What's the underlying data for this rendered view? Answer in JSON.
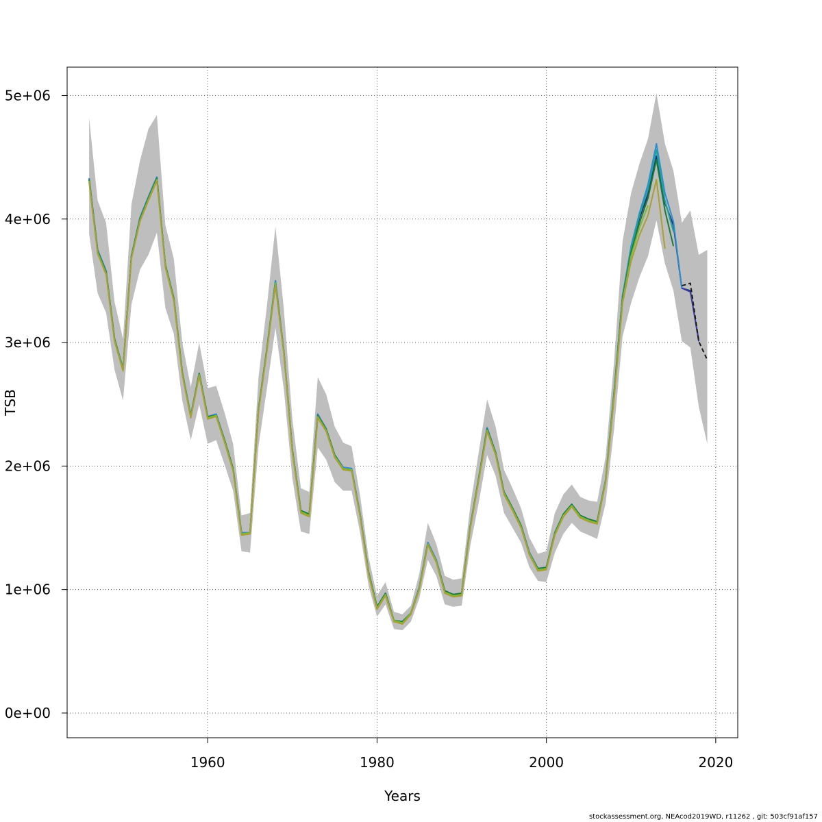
{
  "chart_data": {
    "type": "line",
    "xlabel": "Years",
    "ylabel": "TSB",
    "xlim": [
      1943.4,
      2022.6
    ],
    "ylim": [
      -200000,
      5230000
    ],
    "x_ticks": [
      1960,
      1980,
      2000,
      2020
    ],
    "y_ticks": [
      {
        "value": 0,
        "label": "0e+00"
      },
      {
        "value": 1000000,
        "label": "1e+06"
      },
      {
        "value": 2000000,
        "label": "2e+06"
      },
      {
        "value": 3000000,
        "label": "3e+06"
      },
      {
        "value": 4000000,
        "label": "4e+06"
      },
      {
        "value": 5000000,
        "label": "5e+06"
      }
    ],
    "grid": true,
    "band_color": "#bebebe",
    "x": [
      1946,
      1947,
      1948,
      1949,
      1950,
      1951,
      1952,
      1953,
      1954,
      1955,
      1956,
      1957,
      1958,
      1959,
      1960,
      1961,
      1962,
      1963,
      1964,
      1965,
      1966,
      1967,
      1968,
      1969,
      1970,
      1971,
      1972,
      1973,
      1974,
      1975,
      1976,
      1977,
      1978,
      1979,
      1980,
      1981,
      1982,
      1983,
      1984,
      1985,
      1986,
      1987,
      1988,
      1989,
      1990,
      1991,
      1992,
      1993,
      1994,
      1995,
      1996,
      1997,
      1998,
      1999,
      2000,
      2001,
      2002,
      2003,
      2004,
      2005,
      2006,
      2007,
      2008,
      2009,
      2010,
      2011,
      2012,
      2013,
      2014,
      2015,
      2016,
      2017,
      2018,
      2019
    ],
    "band_upper": [
      4820000,
      4150000,
      3970000,
      3330000,
      3030000,
      4120000,
      4470000,
      4730000,
      4840000,
      3950000,
      3680000,
      3000000,
      2640000,
      3000000,
      2630000,
      2650000,
      2430000,
      2180000,
      1600000,
      1620000,
      2720000,
      3300000,
      3940000,
      3270000,
      2380000,
      1820000,
      1790000,
      2720000,
      2580000,
      2320000,
      2190000,
      2160000,
      1760000,
      1260000,
      950000,
      1060000,
      820000,
      800000,
      870000,
      1130000,
      1540000,
      1370000,
      1110000,
      1080000,
      1090000,
      1670000,
      2110000,
      2540000,
      2320000,
      1970000,
      1820000,
      1660000,
      1420000,
      1290000,
      1310000,
      1620000,
      1770000,
      1850000,
      1750000,
      1720000,
      1710000,
      2080000,
      2850000,
      3820000,
      4210000,
      4450000,
      4650000,
      5020000,
      4610000,
      4390000,
      3970000,
      4070000,
      3710000,
      3750000
    ],
    "band_lower": [
      3880000,
      3400000,
      3240000,
      2780000,
      2530000,
      3310000,
      3590000,
      3710000,
      3890000,
      3280000,
      3070000,
      2530000,
      2210000,
      2500000,
      2180000,
      2210000,
      2010000,
      1800000,
      1310000,
      1300000,
      2160000,
      2630000,
      3120000,
      2620000,
      1900000,
      1470000,
      1450000,
      2150000,
      2050000,
      1870000,
      1800000,
      1800000,
      1460000,
      1030000,
      780000,
      880000,
      680000,
      670000,
      740000,
      930000,
      1240000,
      1110000,
      880000,
      860000,
      870000,
      1350000,
      1700000,
      2090000,
      1920000,
      1620000,
      1500000,
      1380000,
      1180000,
      1070000,
      1060000,
      1300000,
      1450000,
      1540000,
      1470000,
      1440000,
      1410000,
      1700000,
      2300000,
      3050000,
      3320000,
      3530000,
      3700000,
      3990000,
      3640000,
      3420000,
      3010000,
      2960000,
      2480000,
      2180000
    ]
  },
  "series": [
    {
      "color": "#1e2f7a",
      "x_start": 1946,
      "values": [
        4330000,
        3750000,
        3580000,
        3030000,
        2790000,
        3700000,
        4010000,
        4180000,
        4340000,
        3630000,
        3360000,
        2760000,
        2410000,
        2750000,
        2400000,
        2420000,
        2210000,
        1980000,
        1460000,
        1460000,
        2460000,
        2950000,
        3500000,
        2930000,
        2130000,
        1640000,
        1610000,
        2420000,
        2300000,
        2090000,
        1990000,
        1980000,
        1610000,
        1140000,
        860000,
        970000,
        750000,
        740000,
        810000,
        1020000,
        1380000,
        1240000,
        990000,
        960000,
        970000,
        1510000,
        1900000,
        2310000,
        2110000,
        1790000,
        1660000,
        1520000,
        1300000,
        1170000,
        1180000,
        1460000,
        1610000,
        1690000,
        1600000,
        1570000,
        1550000,
        1890000,
        2600000,
        3380000,
        3760000,
        4010000,
        4200000,
        4510000,
        4130000,
        3950000,
        3440000,
        3420000,
        3010000
      ]
    },
    {
      "color": "#2a8ed0",
      "x_start": 1946,
      "values": [
        4330000,
        3750000,
        3580000,
        3030000,
        2790000,
        3700000,
        4010000,
        4180000,
        4340000,
        3630000,
        3360000,
        2760000,
        2410000,
        2750000,
        2400000,
        2420000,
        2210000,
        1980000,
        1460000,
        1460000,
        2460000,
        2950000,
        3500000,
        2930000,
        2130000,
        1640000,
        1610000,
        2420000,
        2300000,
        2090000,
        1990000,
        1980000,
        1610000,
        1140000,
        860000,
        970000,
        750000,
        740000,
        810000,
        1020000,
        1380000,
        1240000,
        990000,
        960000,
        970000,
        1510000,
        1900000,
        2310000,
        2110000,
        1790000,
        1660000,
        1520000,
        1300000,
        1170000,
        1180000,
        1460000,
        1610000,
        1690000,
        1600000,
        1570000,
        1550000,
        1890000,
        2600000,
        3380000,
        3780000,
        4050000,
        4280000,
        4610000,
        4210000,
        3980000,
        3440000
      ]
    },
    {
      "color": "#1fa39a",
      "x_start": 1946,
      "values": [
        4320000,
        3740000,
        3570000,
        3030000,
        2780000,
        3700000,
        4000000,
        4170000,
        4330000,
        3630000,
        3360000,
        2760000,
        2400000,
        2750000,
        2400000,
        2410000,
        2210000,
        1980000,
        1450000,
        1460000,
        2460000,
        2950000,
        3490000,
        2920000,
        2130000,
        1640000,
        1610000,
        2410000,
        2300000,
        2090000,
        1980000,
        1970000,
        1600000,
        1140000,
        860000,
        970000,
        750000,
        740000,
        810000,
        1010000,
        1370000,
        1230000,
        990000,
        960000,
        970000,
        1500000,
        1900000,
        2300000,
        2110000,
        1790000,
        1660000,
        1520000,
        1290000,
        1170000,
        1180000,
        1460000,
        1610000,
        1690000,
        1600000,
        1570000,
        1550000,
        1880000,
        2590000,
        3370000,
        3760000,
        4030000,
        4240000,
        4560000,
        4150000,
        3900000
      ]
    },
    {
      "color": "#1f7a3a",
      "x_start": 1946,
      "values": [
        4320000,
        3740000,
        3570000,
        3030000,
        2780000,
        3700000,
        4000000,
        4170000,
        4330000,
        3630000,
        3360000,
        2760000,
        2400000,
        2750000,
        2400000,
        2410000,
        2210000,
        1980000,
        1450000,
        1460000,
        2460000,
        2950000,
        3480000,
        2920000,
        2130000,
        1640000,
        1610000,
        2410000,
        2300000,
        2090000,
        1980000,
        1970000,
        1600000,
        1140000,
        860000,
        970000,
        750000,
        740000,
        810000,
        1010000,
        1370000,
        1230000,
        990000,
        960000,
        970000,
        1500000,
        1900000,
        2300000,
        2110000,
        1790000,
        1660000,
        1520000,
        1290000,
        1170000,
        1180000,
        1460000,
        1610000,
        1690000,
        1600000,
        1570000,
        1550000,
        1880000,
        2580000,
        3360000,
        3730000,
        3970000,
        4170000,
        4480000,
        4070000,
        3780000
      ]
    },
    {
      "color": "#7fb83a",
      "x_start": 1946,
      "values": [
        4310000,
        3730000,
        3560000,
        3020000,
        2780000,
        3690000,
        3990000,
        4160000,
        4320000,
        3620000,
        3350000,
        2750000,
        2400000,
        2740000,
        2390000,
        2410000,
        2200000,
        1970000,
        1450000,
        1460000,
        2450000,
        2940000,
        3480000,
        2920000,
        2120000,
        1630000,
        1600000,
        2400000,
        2290000,
        2080000,
        1980000,
        1970000,
        1600000,
        1130000,
        850000,
        960000,
        750000,
        730000,
        810000,
        1010000,
        1370000,
        1230000,
        980000,
        950000,
        960000,
        1500000,
        1890000,
        2290000,
        2100000,
        1780000,
        1650000,
        1510000,
        1290000,
        1160000,
        1170000,
        1450000,
        1600000,
        1680000,
        1590000,
        1560000,
        1540000,
        1880000,
        2570000,
        3340000,
        3700000,
        3930000,
        4110000
      ]
    },
    {
      "color": "#a8a033",
      "x_start": 1946,
      "values": [
        4300000,
        3720000,
        3550000,
        3010000,
        2770000,
        3680000,
        3980000,
        4150000,
        4310000,
        3610000,
        3340000,
        2740000,
        2390000,
        2730000,
        2380000,
        2400000,
        2190000,
        1960000,
        1440000,
        1450000,
        2440000,
        2930000,
        3460000,
        2910000,
        2110000,
        1620000,
        1590000,
        2390000,
        2280000,
        2070000,
        1970000,
        1960000,
        1590000,
        1120000,
        840000,
        950000,
        740000,
        720000,
        800000,
        1000000,
        1360000,
        1220000,
        970000,
        940000,
        950000,
        1490000,
        1880000,
        2280000,
        2090000,
        1770000,
        1640000,
        1500000,
        1280000,
        1150000,
        1160000,
        1440000,
        1590000,
        1670000,
        1580000,
        1550000,
        1530000,
        1870000,
        2550000,
        3320000,
        3660000,
        3870000,
        4030000,
        4320000,
        3760000
      ]
    },
    {
      "color": "#3d3d9e",
      "x_start": 2016,
      "values": [
        3440000,
        3410000,
        3020000
      ]
    },
    {
      "color": "#1a1a1a",
      "dash": true,
      "x_start": 2016,
      "values": [
        3460000,
        3480000,
        3010000,
        2860000
      ]
    }
  ],
  "footer": "stockassessment.org, NEAcod2019WD, r11262 , git: 503cf91af157"
}
